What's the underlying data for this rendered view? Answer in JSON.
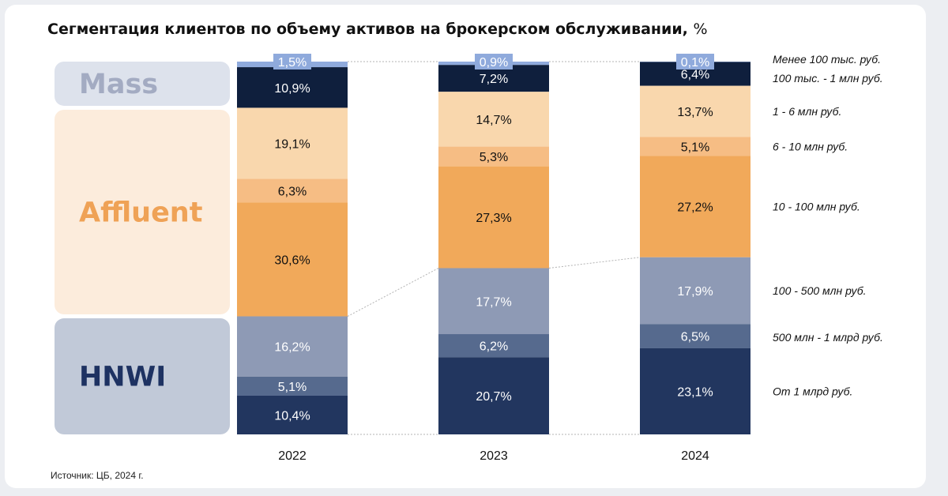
{
  "title": "Сегментация клиентов по объему активов на брокерском обслуживании,",
  "title_unit": "%",
  "source": "Источник: ЦБ, 2024 г.",
  "groups": [
    {
      "label": "Mass",
      "from": 0,
      "to": 1,
      "bg": "#dde2ec",
      "color": "#a3abc2"
    },
    {
      "label": "Affluent",
      "from": 2,
      "to": 4,
      "bg": "#fcecdc",
      "color": "#efa256"
    },
    {
      "label": "HNWI",
      "from": 5,
      "to": 7,
      "bg": "#c1c9d8",
      "color": "#1e3262"
    }
  ],
  "colors": [
    "#8faadc",
    "#0f1f3d",
    "#f9d7ad",
    "#f6bd84",
    "#f1a95a",
    "#8e9ab5",
    "#566a8e",
    "#22365f"
  ],
  "text_colors": [
    "#ffffff",
    "#ffffff",
    "#111111",
    "#111111",
    "#111111",
    "#ffffff",
    "#ffffff",
    "#ffffff"
  ],
  "chart_data": {
    "type": "bar",
    "stacked": true,
    "normalized": true,
    "title": "Сегментация клиентов по объему активов на брокерском обслуживании, %",
    "categories": [
      "2022",
      "2023",
      "2024"
    ],
    "series": [
      {
        "name": "Менее 100 тыс. руб.",
        "values": [
          1.5,
          0.9,
          0.1
        ],
        "labels": [
          "1,5%",
          "0,9%",
          "0,1%"
        ]
      },
      {
        "name": "100 тыс. - 1 млн руб.",
        "values": [
          10.9,
          7.2,
          6.4
        ],
        "labels": [
          "10,9%",
          "7,2%",
          "6,4%"
        ]
      },
      {
        "name": "1 - 6 млн руб.",
        "values": [
          19.1,
          14.7,
          13.7
        ],
        "labels": [
          "19,1%",
          "14,7%",
          "13,7%"
        ]
      },
      {
        "name": "6 - 10 млн руб.",
        "values": [
          6.3,
          5.3,
          5.1
        ],
        "labels": [
          "6,3%",
          "5,3%",
          "5,1%"
        ]
      },
      {
        "name": "10 - 100 млн руб.",
        "values": [
          30.6,
          27.3,
          27.2
        ],
        "labels": [
          "30,6%",
          "27,3%",
          "27,2%"
        ]
      },
      {
        "name": "100 - 500 млн руб.",
        "values": [
          16.2,
          17.7,
          17.9
        ],
        "labels": [
          "16,2%",
          "17,7%",
          "17,9%"
        ]
      },
      {
        "name": "500 млн - 1 млрд руб.",
        "values": [
          5.1,
          6.2,
          6.5
        ],
        "labels": [
          "5,1%",
          "6,2%",
          "6,5%"
        ]
      },
      {
        "name": "От 1 млрд руб.",
        "values": [
          10.4,
          20.7,
          23.1
        ],
        "labels": [
          "10,4%",
          "20,7%",
          "23,1%"
        ]
      }
    ],
    "xlabel": "",
    "ylabel": ""
  }
}
